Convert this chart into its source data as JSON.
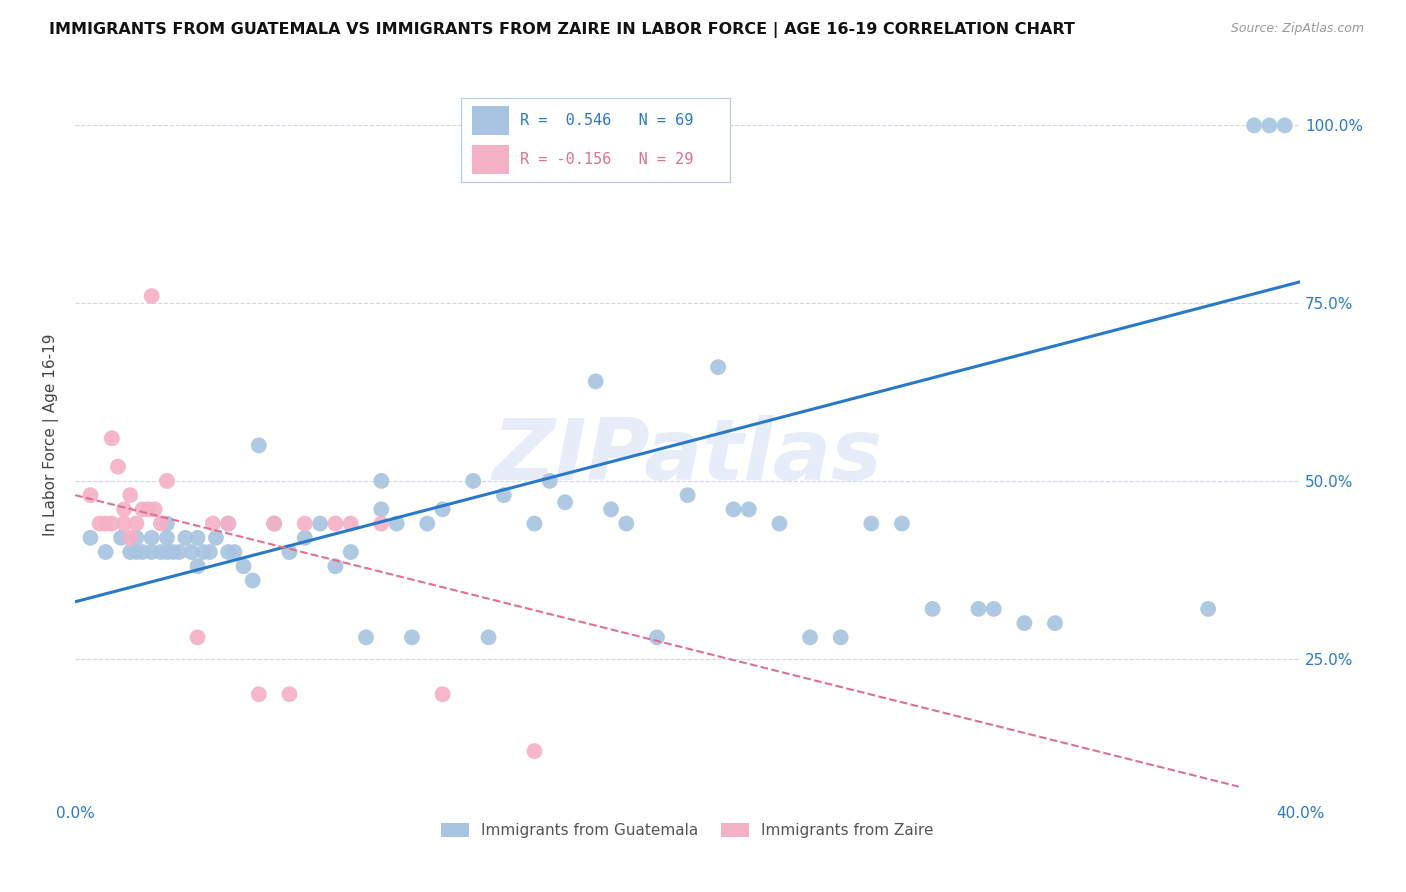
{
  "title": "IMMIGRANTS FROM GUATEMALA VS IMMIGRANTS FROM ZAIRE IN LABOR FORCE | AGE 16-19 CORRELATION CHART",
  "source": "Source: ZipAtlas.com",
  "ylabel": "In Labor Force | Age 16-19",
  "xlim": [
    0.0,
    0.4
  ],
  "ylim": [
    0.05,
    1.08
  ],
  "x_ticks": [
    0.0,
    0.05,
    0.1,
    0.15,
    0.2,
    0.25,
    0.3,
    0.35,
    0.4
  ],
  "x_tick_labels": [
    "0.0%",
    "",
    "",
    "",
    "",
    "",
    "",
    "",
    "40.0%"
  ],
  "y_ticks": [
    0.25,
    0.5,
    0.75,
    1.0
  ],
  "y_tick_labels": [
    "25.0%",
    "50.0%",
    "75.0%",
    "100.0%"
  ],
  "watermark": "ZIPatlas",
  "legend_r_blue": "R =  0.546",
  "legend_n_blue": "N = 69",
  "legend_r_pink": "R = -0.156",
  "legend_n_pink": "N = 29",
  "blue_color": "#a8c4e0",
  "blue_line_color": "#2979c8",
  "pink_color": "#f4b0c4",
  "pink_line_color": "#e07090",
  "grid_color": "#d0d8e8",
  "background_color": "#ffffff",
  "blue_scatter_x": [
    0.005,
    0.01,
    0.015,
    0.018,
    0.02,
    0.02,
    0.022,
    0.025,
    0.025,
    0.028,
    0.03,
    0.03,
    0.03,
    0.032,
    0.034,
    0.036,
    0.038,
    0.04,
    0.04,
    0.042,
    0.044,
    0.046,
    0.05,
    0.05,
    0.052,
    0.055,
    0.058,
    0.06,
    0.065,
    0.07,
    0.075,
    0.08,
    0.085,
    0.09,
    0.095,
    0.1,
    0.1,
    0.105,
    0.11,
    0.115,
    0.12,
    0.13,
    0.135,
    0.14,
    0.15,
    0.155,
    0.16,
    0.17,
    0.175,
    0.18,
    0.19,
    0.2,
    0.21,
    0.215,
    0.22,
    0.23,
    0.24,
    0.25,
    0.26,
    0.27,
    0.28,
    0.295,
    0.3,
    0.31,
    0.32,
    0.37,
    0.385,
    0.39,
    0.395
  ],
  "blue_scatter_y": [
    0.42,
    0.4,
    0.42,
    0.4,
    0.4,
    0.42,
    0.4,
    0.42,
    0.4,
    0.4,
    0.4,
    0.42,
    0.44,
    0.4,
    0.4,
    0.42,
    0.4,
    0.42,
    0.38,
    0.4,
    0.4,
    0.42,
    0.4,
    0.44,
    0.4,
    0.38,
    0.36,
    0.55,
    0.44,
    0.4,
    0.42,
    0.44,
    0.38,
    0.4,
    0.28,
    0.46,
    0.5,
    0.44,
    0.28,
    0.44,
    0.46,
    0.5,
    0.28,
    0.48,
    0.44,
    0.5,
    0.47,
    0.64,
    0.46,
    0.44,
    0.28,
    0.48,
    0.66,
    0.46,
    0.46,
    0.44,
    0.28,
    0.28,
    0.44,
    0.44,
    0.32,
    0.32,
    0.32,
    0.3,
    0.3,
    0.32,
    1.0,
    1.0,
    1.0
  ],
  "pink_scatter_x": [
    0.005,
    0.008,
    0.01,
    0.012,
    0.012,
    0.014,
    0.016,
    0.016,
    0.018,
    0.018,
    0.02,
    0.022,
    0.024,
    0.025,
    0.026,
    0.028,
    0.03,
    0.04,
    0.045,
    0.05,
    0.06,
    0.065,
    0.07,
    0.075,
    0.085,
    0.09,
    0.1,
    0.12,
    0.15
  ],
  "pink_scatter_y": [
    0.48,
    0.44,
    0.44,
    0.44,
    0.56,
    0.52,
    0.44,
    0.46,
    0.48,
    0.42,
    0.44,
    0.46,
    0.46,
    0.76,
    0.46,
    0.44,
    0.5,
    0.28,
    0.44,
    0.44,
    0.2,
    0.44,
    0.2,
    0.44,
    0.44,
    0.44,
    0.44,
    0.2,
    0.12
  ],
  "blue_line_x": [
    0.0,
    0.4
  ],
  "blue_line_y": [
    0.33,
    0.78
  ],
  "pink_line_x": [
    0.0,
    0.38
  ],
  "pink_line_y": [
    0.48,
    0.07
  ]
}
